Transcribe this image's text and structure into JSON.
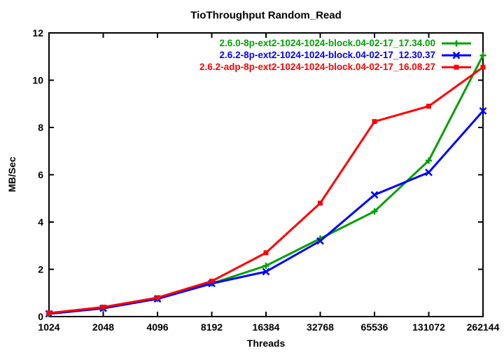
{
  "chart_data": {
    "type": "line",
    "title": "TioThroughput Random_Read",
    "xlabel": "Threads",
    "ylabel": "MB/Sec",
    "x_scale": "log2",
    "x_ticks": [
      "1024",
      "2048",
      "4096",
      "8192",
      "16384",
      "32768",
      "65536",
      "131072",
      "262144"
    ],
    "y_ticks": [
      0,
      2,
      4,
      6,
      8,
      10,
      12
    ],
    "ylim": [
      0,
      12
    ],
    "grid": false,
    "legend_position": "top-right-inside",
    "background_color": "#ffffff",
    "axis_color": "#000000",
    "series": [
      {
        "name": "2.6.0-8p-ext2-1024-1024-block.04-02-17_17.34.00",
        "color": "#00a000",
        "marker": "plus",
        "values": [
          0.12,
          0.35,
          0.75,
          1.4,
          2.15,
          3.3,
          4.45,
          6.6,
          11.05
        ]
      },
      {
        "name": "2.6.2-8p-ext2-1024-1024-block.04-02-17_12.30.37",
        "color": "#0000ff",
        "marker": "x",
        "values": [
          0.12,
          0.35,
          0.75,
          1.4,
          1.9,
          3.2,
          5.15,
          6.1,
          8.7
        ]
      },
      {
        "name": "2.6.2-adp-8p-ext2-1024-1024-block.04-02-17_16.08.27",
        "color": "#ff0000",
        "marker": "square",
        "values": [
          0.15,
          0.4,
          0.8,
          1.5,
          2.7,
          4.8,
          8.25,
          8.9,
          10.55
        ]
      }
    ]
  }
}
